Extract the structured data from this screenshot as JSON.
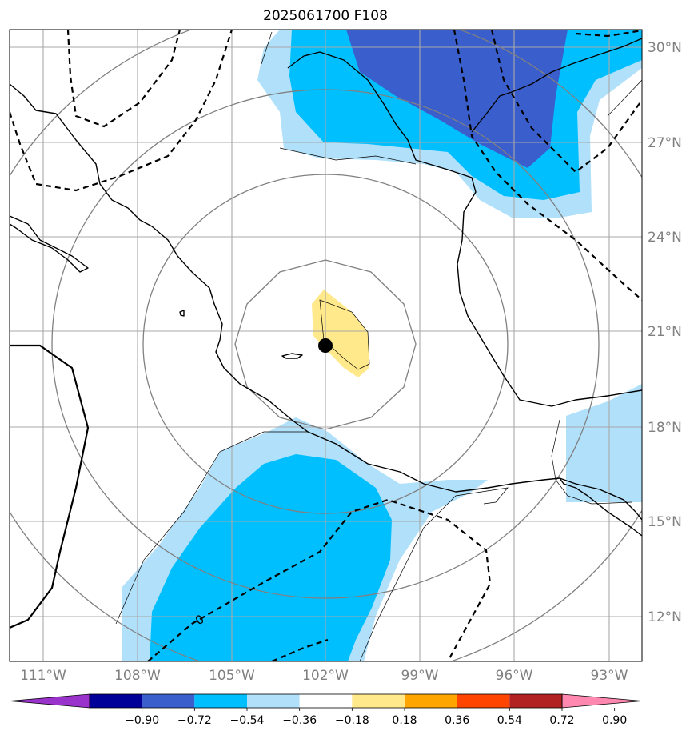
{
  "title": "2025061700 F108",
  "map": {
    "lon_labels": [
      "111°W",
      "108°W",
      "105°W",
      "102°W",
      "99°W",
      "96°W",
      "93°W"
    ],
    "lat_labels": [
      "30°N",
      "27°N",
      "24°N",
      "21°N",
      "18°N",
      "15°N",
      "12°N"
    ],
    "contour_label": "0",
    "center_marker": {
      "lon": -102,
      "lat": 20.6
    }
  },
  "colorbar": {
    "colors": [
      "#9933cc",
      "#000099",
      "#3a5fcd",
      "#00bfff",
      "#b0e0fa",
      "#ffffff",
      "#ffe98a",
      "#ffa500",
      "#ff4500",
      "#b22222",
      "#ff88b0"
    ],
    "tick_labels": [
      "−0.90",
      "−0.72",
      "−0.54",
      "−0.36",
      "−0.18",
      "0.18",
      "0.36",
      "0.54",
      "0.72",
      "0.90"
    ]
  }
}
